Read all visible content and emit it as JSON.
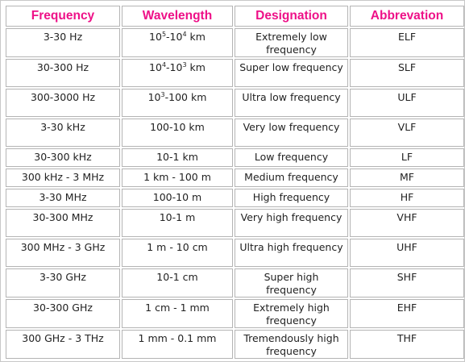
{
  "table": {
    "headers": [
      "Frequency",
      "Wavelength",
      "Designation",
      "Abbrevation"
    ],
    "rows": [
      {
        "frequency": "3-30 Hz",
        "wavelength": {
          "pre": "10",
          "sup1": "5",
          "mid": "-10",
          "sup2": "4",
          "post": " km"
        },
        "designation": "Extremely low frequency",
        "abbreviation": "ELF"
      },
      {
        "frequency": "30-300 Hz",
        "wavelength": {
          "pre": "10",
          "sup1": "4",
          "mid": "-10",
          "sup2": "3",
          "post": " km"
        },
        "designation": "Super low frequency",
        "abbreviation": "SLF"
      },
      {
        "frequency": "300-3000 Hz",
        "wavelength": {
          "pre": "10",
          "sup1": "3",
          "mid": "-100 km",
          "sup2": "",
          "post": ""
        },
        "designation": "Ultra low frequency",
        "abbreviation": "ULF"
      },
      {
        "frequency": "3-30 kHz",
        "wavelength": "100-10 km",
        "designation": "Very low frequency",
        "abbreviation": "VLF"
      },
      {
        "frequency": "30-300 kHz",
        "wavelength": "10-1 km",
        "designation": "Low frequency",
        "abbreviation": "LF"
      },
      {
        "frequency": "300 kHz - 3 MHz",
        "wavelength": "1 km - 100 m",
        "designation": "Medium frequency",
        "abbreviation": "MF"
      },
      {
        "frequency": "3-30 MHz",
        "wavelength": "100-10 m",
        "designation": "High frequency",
        "abbreviation": "HF"
      },
      {
        "frequency": "30-300 MHz",
        "wavelength": "10-1 m",
        "designation": "Very high frequency",
        "abbreviation": "VHF"
      },
      {
        "frequency": "300 MHz - 3 GHz",
        "wavelength": "1 m - 10 cm",
        "designation": "Ultra high frequency",
        "abbreviation": "UHF"
      },
      {
        "frequency": "3-30 GHz",
        "wavelength": "10-1 cm",
        "designation": "Super high frequency",
        "abbreviation": "SHF"
      },
      {
        "frequency": "30-300 GHz",
        "wavelength": "1 cm - 1 mm",
        "designation": "Extremely high frequency",
        "abbreviation": "EHF"
      },
      {
        "frequency": "300 GHz - 3 THz",
        "wavelength": "1 mm - 0.1 mm",
        "designation": "Tremendously high frequency",
        "abbreviation": "THF"
      }
    ]
  },
  "accent_color": "#ee1188"
}
